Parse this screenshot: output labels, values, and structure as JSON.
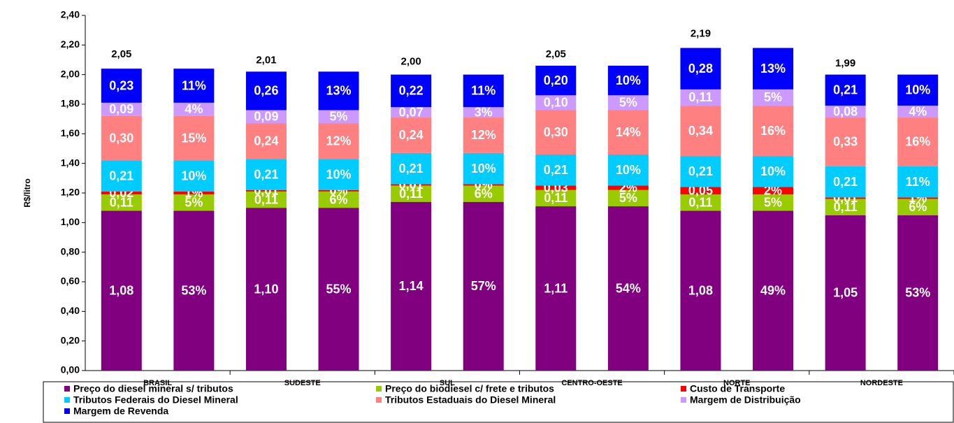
{
  "chart_data": {
    "type": "stacked-bar",
    "y_label": "R$/litro",
    "categories": [
      "BRASIL",
      "SUDESTE",
      "SUL",
      "CENTRO-OESTE",
      "NORTE",
      "NORDESTE"
    ],
    "ylim": [
      0,
      2.4
    ],
    "yticks": [
      {
        "value": 0,
        "label": "0,00"
      },
      {
        "value": 0.2,
        "label": "0,20"
      },
      {
        "value": 0.4,
        "label": "0,40"
      },
      {
        "value": 0.6,
        "label": "0,60"
      },
      {
        "value": 0.8,
        "label": "0,80"
      },
      {
        "value": 1.0,
        "label": "1,00"
      },
      {
        "value": 1.2,
        "label": "1,20"
      },
      {
        "value": 1.4,
        "label": "1,40"
      },
      {
        "value": 1.6,
        "label": "1,60"
      },
      {
        "value": 1.8,
        "label": "1,80"
      },
      {
        "value": 2.0,
        "label": "2,00"
      },
      {
        "value": 2.2,
        "label": "2,20"
      },
      {
        "value": 2.4,
        "label": "2,40"
      }
    ],
    "totals": [
      2.05,
      2.01,
      2.0,
      2.05,
      2.19,
      1.99
    ],
    "totals_labels": [
      "2,05",
      "2,01",
      "2,00",
      "2,05",
      "2,19",
      "1,99"
    ],
    "series": [
      {
        "name": "Preço do diesel mineral s/ tributos",
        "color": "#800080",
        "values": [
          1.08,
          1.1,
          1.14,
          1.11,
          1.08,
          1.05
        ],
        "value_labels": [
          "1,08",
          "1,10",
          "1,14",
          "1,11",
          "1,08",
          "1,05"
        ],
        "shares": [
          53,
          55,
          57,
          54,
          49,
          53
        ],
        "share_labels": [
          "53%",
          "55%",
          "57%",
          "54%",
          "49%",
          "53%"
        ]
      },
      {
        "name": "Preço do biodiesel c/ frete e tributos",
        "color": "#99cc00",
        "values": [
          0.11,
          0.11,
          0.11,
          0.11,
          0.11,
          0.11
        ],
        "value_labels": [
          "0,11",
          "0,11",
          "0,11",
          "0,11",
          "0,11",
          "0,11"
        ],
        "shares": [
          5,
          6,
          6,
          5,
          5,
          6
        ],
        "share_labels": [
          "5%",
          "6%",
          "6%",
          "5%",
          "5%",
          "6%"
        ]
      },
      {
        "name": "Custo de Transporte",
        "color": "#ff0000",
        "values": [
          0.02,
          0.01,
          0.01,
          0.03,
          0.05,
          0.01
        ],
        "value_labels": [
          "0,02",
          "0,01",
          "0,01",
          "0,03",
          "0,05",
          "0,01"
        ],
        "shares": [
          1,
          0,
          0,
          2,
          2,
          1
        ],
        "share_labels": [
          "1%",
          "0%",
          "0%",
          "2%",
          "2%",
          "1%"
        ]
      },
      {
        "name": "Tributos Federais do Diesel Mineral",
        "color": "#00ccff",
        "values": [
          0.21,
          0.21,
          0.21,
          0.21,
          0.21,
          0.21
        ],
        "value_labels": [
          "0,21",
          "0,21",
          "0,21",
          "0,21",
          "0,21",
          "0,21"
        ],
        "shares": [
          10,
          10,
          10,
          10,
          10,
          11
        ],
        "share_labels": [
          "10%",
          "10%",
          "10%",
          "10%",
          "10%",
          "11%"
        ]
      },
      {
        "name": "Tributos Estaduais do Diesel Mineral",
        "color": "#ff8080",
        "values": [
          0.3,
          0.24,
          0.24,
          0.3,
          0.34,
          0.33
        ],
        "value_labels": [
          "0,30",
          "0,24",
          "0,24",
          "0,30",
          "0,34",
          "0,33"
        ],
        "shares": [
          15,
          12,
          12,
          14,
          16,
          16
        ],
        "share_labels": [
          "15%",
          "12%",
          "12%",
          "14%",
          "16%",
          "16%"
        ]
      },
      {
        "name": "Margem de Distribuição",
        "color": "#cc99ff",
        "values": [
          0.09,
          0.09,
          0.07,
          0.1,
          0.11,
          0.08
        ],
        "value_labels": [
          "0,09",
          "0,09",
          "0,07",
          "0,10",
          "0,11",
          "0,08"
        ],
        "shares": [
          4,
          5,
          3,
          5,
          5,
          4
        ],
        "share_labels": [
          "4%",
          "5%",
          "3%",
          "5%",
          "5%",
          "4%"
        ]
      },
      {
        "name": "Margem de Revenda",
        "color": "#0000ff",
        "values": [
          0.23,
          0.26,
          0.22,
          0.2,
          0.28,
          0.21
        ],
        "value_labels": [
          "0,23",
          "0,26",
          "0,22",
          "0,20",
          "0,28",
          "0,21"
        ],
        "shares": [
          11,
          13,
          11,
          10,
          13,
          10
        ],
        "share_labels": [
          "11%",
          "13%",
          "11%",
          "10%",
          "13%",
          "10%"
        ]
      }
    ]
  }
}
